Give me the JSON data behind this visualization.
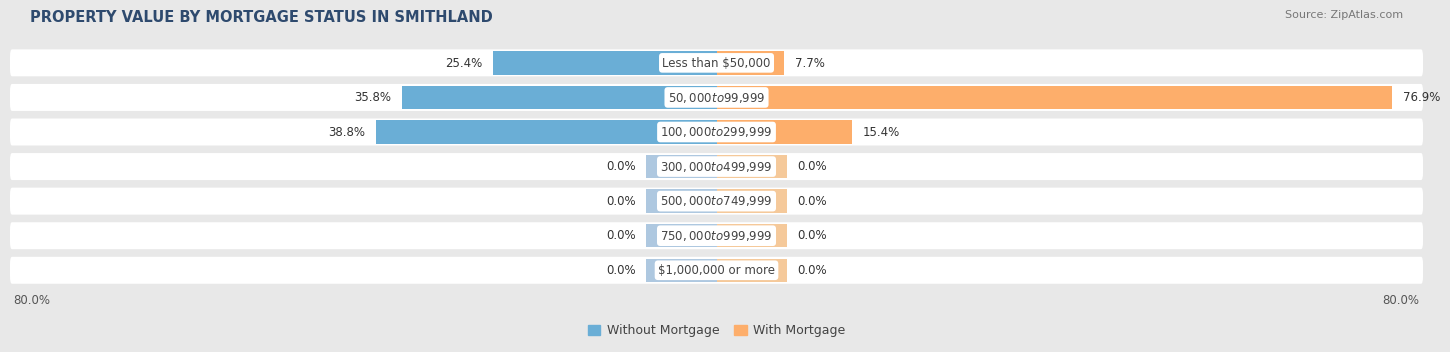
{
  "title": "PROPERTY VALUE BY MORTGAGE STATUS IN SMITHLAND",
  "source": "Source: ZipAtlas.com",
  "categories": [
    "Less than $50,000",
    "$50,000 to $99,999",
    "$100,000 to $299,999",
    "$300,000 to $499,999",
    "$500,000 to $749,999",
    "$750,000 to $999,999",
    "$1,000,000 or more"
  ],
  "without_mortgage": [
    25.4,
    35.8,
    38.8,
    0.0,
    0.0,
    0.0,
    0.0
  ],
  "with_mortgage": [
    7.7,
    76.9,
    15.4,
    0.0,
    0.0,
    0.0,
    0.0
  ],
  "color_without": "#6aaed6",
  "color_with": "#fdae6b",
  "color_without_zero": "#aec8e0",
  "color_with_zero": "#f5c99a",
  "axis_limit": 80.0,
  "zero_stub": 8.0,
  "bg_color": "#e8e8e8",
  "row_bg_color": "#ffffff",
  "title_fontsize": 10.5,
  "source_fontsize": 8,
  "label_fontsize": 8.5,
  "cat_fontsize": 8.5,
  "axis_label_fontsize": 8.5,
  "legend_fontsize": 9
}
